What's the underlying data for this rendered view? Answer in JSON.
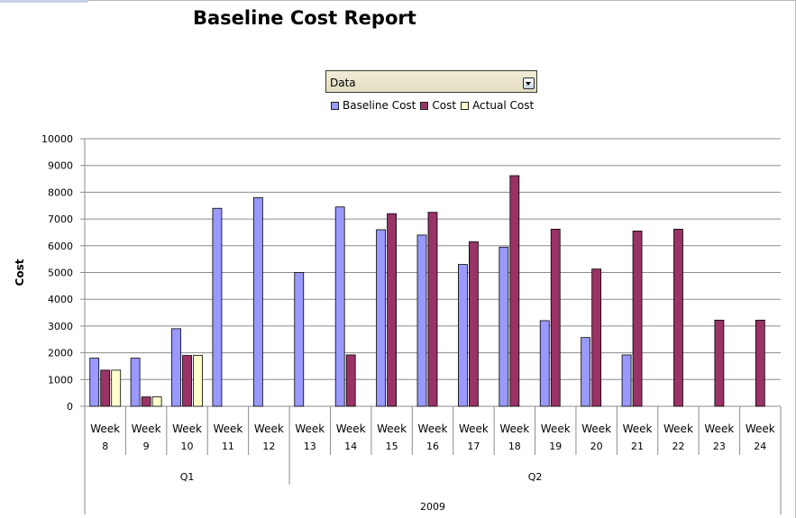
{
  "title": "Baseline Cost Report",
  "dropdown": {
    "label": "Data"
  },
  "chart_data": {
    "type": "bar",
    "ylabel": "Cost",
    "ylim": [
      0,
      10000
    ],
    "yticks": [
      0,
      1000,
      2000,
      3000,
      4000,
      5000,
      6000,
      7000,
      8000,
      9000,
      10000
    ],
    "grid": true,
    "legend_position": "top",
    "categories": [
      "Week 8",
      "Week 9",
      "Week 10",
      "Week 11",
      "Week 12",
      "Week 13",
      "Week 14",
      "Week 15",
      "Week 16",
      "Week 17",
      "Week 18",
      "Week 19",
      "Week 20",
      "Week 21",
      "Week 22",
      "Week 23",
      "Week 24"
    ],
    "groups": [
      {
        "label": "Q1",
        "span": 5
      },
      {
        "label": "Q2",
        "span": 12
      }
    ],
    "year_label": "2009",
    "series": [
      {
        "name": "Baseline Cost",
        "color": "#9999ff",
        "values": [
          1800,
          1800,
          2900,
          7400,
          7800,
          5000,
          7450,
          6600,
          6400,
          5300,
          5950,
          3200,
          2570,
          1920,
          null,
          null,
          null
        ]
      },
      {
        "name": "Cost",
        "color": "#993366",
        "values": [
          1350,
          350,
          1900,
          null,
          null,
          null,
          1920,
          7200,
          7250,
          6150,
          8620,
          6620,
          5130,
          6550,
          6620,
          3220,
          3220
        ]
      },
      {
        "name": "Actual Cost",
        "color": "#ffffcc",
        "values": [
          1350,
          350,
          1900,
          null,
          null,
          null,
          null,
          null,
          null,
          null,
          null,
          null,
          null,
          null,
          null,
          null,
          null
        ]
      }
    ]
  }
}
